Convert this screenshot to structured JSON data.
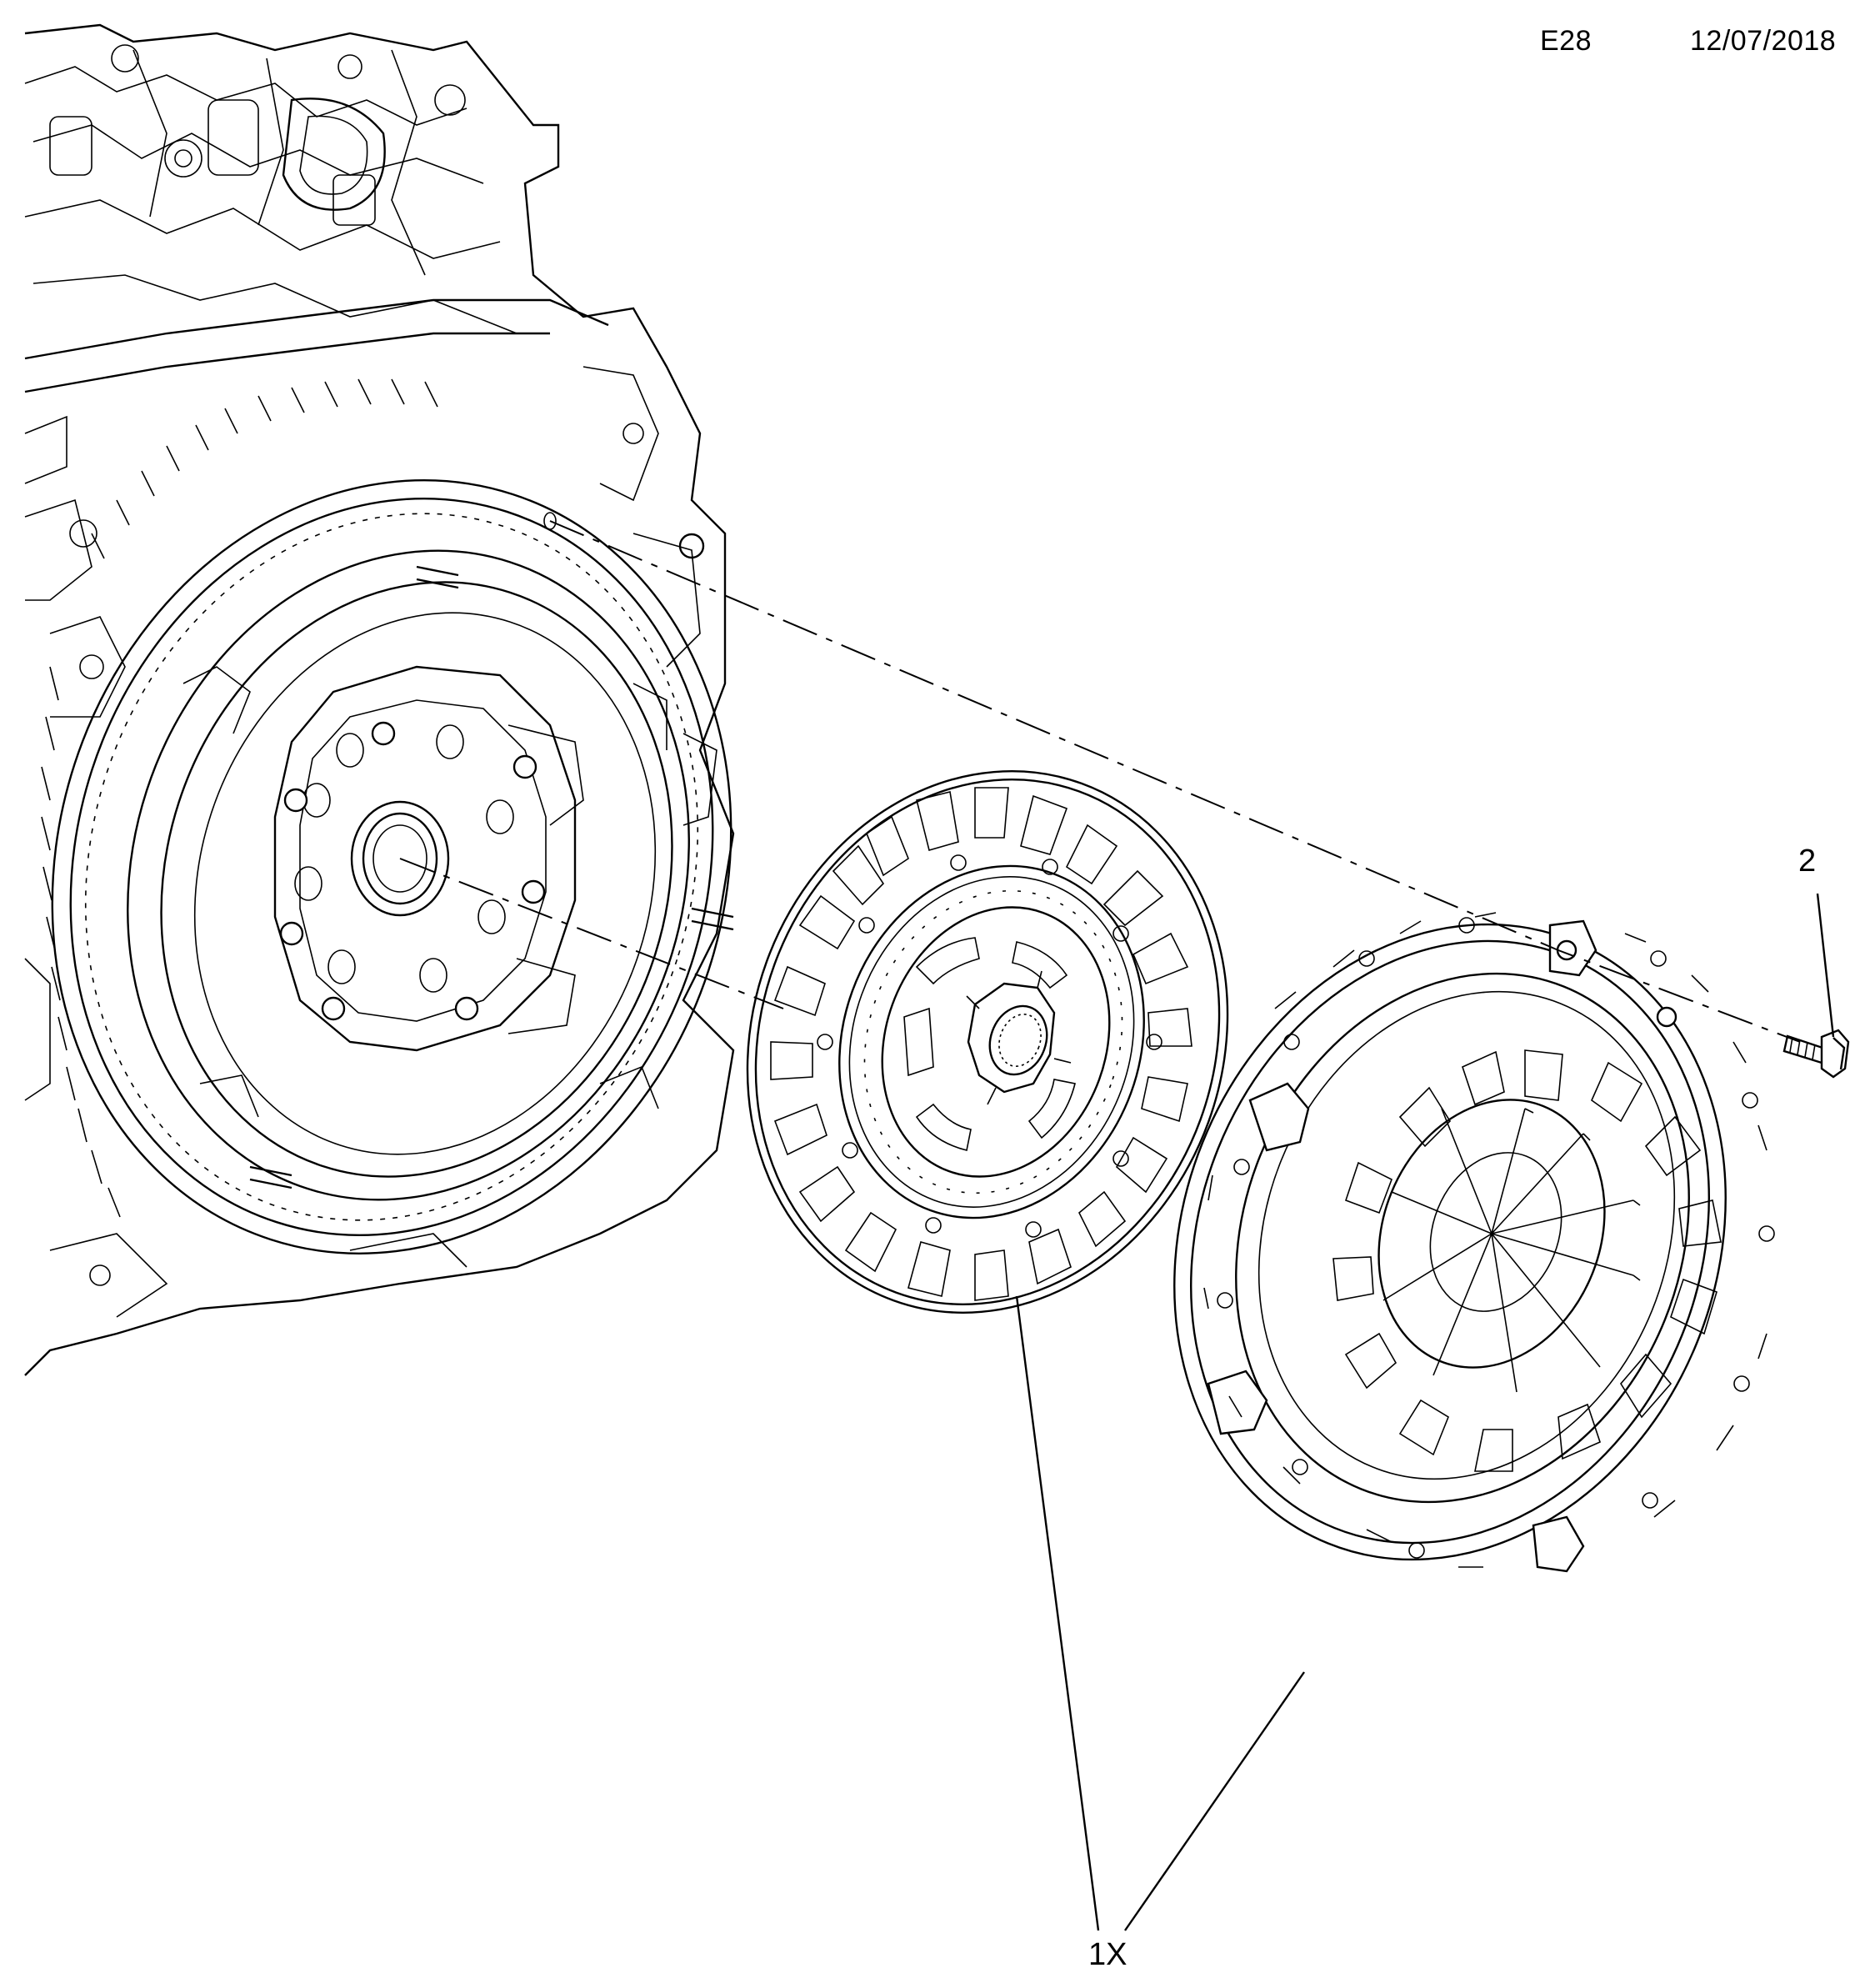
{
  "header": {
    "diagram_code": "E28",
    "date": "12/07/2018"
  },
  "callouts": [
    {
      "id": "2",
      "text": "2"
    },
    {
      "id": "1x",
      "text": "1X"
    }
  ],
  "icons": {
    "engine_block": "engine-block-illustration",
    "flywheel": "flywheel-illustration",
    "clutch_disc": "clutch-disc-illustration",
    "pressure_plate": "clutch-pressure-plate-illustration",
    "bolt": "bolt-illustration"
  }
}
